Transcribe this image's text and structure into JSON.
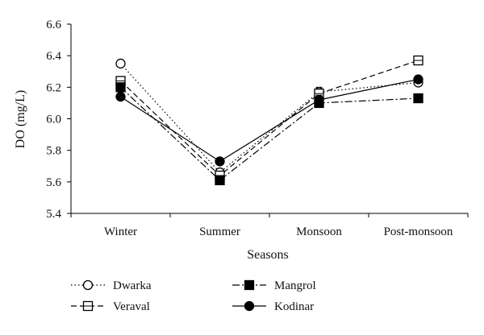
{
  "chart_data": {
    "type": "line",
    "title": "",
    "xlabel": "Seasons",
    "ylabel": "DO (mg/L)",
    "categories": [
      "Winter",
      "Summer",
      "Monsoon",
      "Post-monsoon"
    ],
    "ylim": [
      5.4,
      6.6
    ],
    "yticks": [
      "5.4",
      "5.6",
      "5.8",
      "6.0",
      "6.2",
      "6.4",
      "6.6"
    ],
    "grid": false,
    "legend_position": "bottom",
    "series": [
      {
        "name": "Dwarka",
        "values": [
          6.35,
          5.66,
          6.17,
          6.23
        ],
        "errors": [
          0.01,
          0.01,
          0.03,
          0.01
        ],
        "marker": "open-circle",
        "dash": "1.5,3"
      },
      {
        "name": "Veraval",
        "values": [
          6.24,
          5.64,
          6.16,
          6.37
        ],
        "errors": [
          0.02,
          0.02,
          0.02,
          0.02
        ],
        "marker": "open-square",
        "dash": "7,4"
      },
      {
        "name": "Mangrol",
        "values": [
          6.2,
          5.61,
          6.1,
          6.13
        ],
        "errors": [
          0.01,
          0.01,
          0.02,
          0.01
        ],
        "marker": "filled-square",
        "dash": "9,3,2,3"
      },
      {
        "name": "Kodinar",
        "values": [
          6.14,
          5.73,
          6.12,
          6.25
        ],
        "errors": [
          0.01,
          0.01,
          0.03,
          0.02
        ],
        "marker": "filled-circle",
        "dash": ""
      }
    ]
  }
}
